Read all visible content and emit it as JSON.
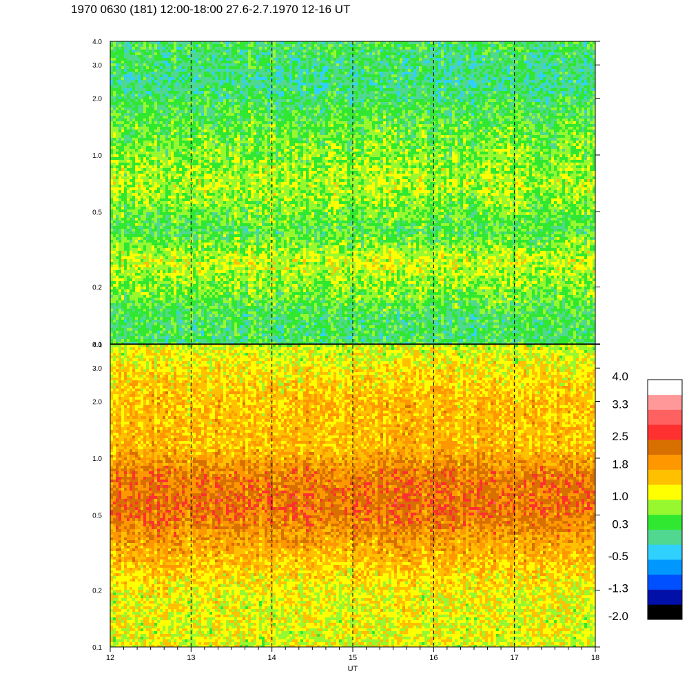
{
  "chart_data": {
    "type": "heatmap",
    "title": "1970 0630 (181) 12:00-18:00 27.6-2.7.1970  12-16 UT",
    "xlabel": "UT",
    "x_ticks": [
      "12",
      "13",
      "14",
      "15",
      "16",
      "17",
      "18"
    ],
    "x_range": [
      12,
      18
    ],
    "y_scale": "log",
    "y_range": [
      0.1,
      4.0
    ],
    "y_ticks": [
      "0.1",
      "0.2",
      "0.5",
      "1.0",
      "2.0",
      "3.0",
      "4.0"
    ],
    "panels": [
      {
        "name": "",
        "profile": [
          {
            "y": 0.1,
            "level": 0.3
          },
          {
            "y": 0.14,
            "level": 0.3
          },
          {
            "y": 0.2,
            "level": 0.7
          },
          {
            "y": 0.28,
            "level": 1.0
          },
          {
            "y": 0.4,
            "level": 0.4
          },
          {
            "y": 0.7,
            "level": 0.9
          },
          {
            "y": 1.0,
            "level": 0.7
          },
          {
            "y": 1.5,
            "level": 0.5
          },
          {
            "y": 2.5,
            "level": 0.1
          },
          {
            "y": 4.0,
            "level": 0.3
          }
        ]
      },
      {
        "name": "",
        "profile": [
          {
            "y": 0.1,
            "level": 1.1
          },
          {
            "y": 0.2,
            "level": 1.2
          },
          {
            "y": 0.35,
            "level": 1.8
          },
          {
            "y": 0.55,
            "level": 2.3
          },
          {
            "y": 0.8,
            "level": 2.2
          },
          {
            "y": 1.2,
            "level": 1.6
          },
          {
            "y": 2.0,
            "level": 1.6
          },
          {
            "y": 3.0,
            "level": 1.3
          },
          {
            "y": 4.0,
            "level": 1.0
          }
        ]
      }
    ],
    "dashed_verticals": [
      13,
      14,
      15,
      16,
      17
    ],
    "colorbar": {
      "ticks": [
        "4.0",
        "3.3",
        "2.5",
        "1.8",
        "1.0",
        "0.3",
        "-0.5",
        "-1.3",
        "-2.0"
      ],
      "range": [
        -2.0,
        4.0
      ],
      "colors": [
        "#000000",
        "#0010a8",
        "#0050ff",
        "#0098ff",
        "#30d0ff",
        "#50d890",
        "#30e830",
        "#98f830",
        "#ffff00",
        "#ffc000",
        "#ff9800",
        "#d87000",
        "#ff3030",
        "#ff6060",
        "#ff9898",
        "#ffffff"
      ]
    }
  }
}
